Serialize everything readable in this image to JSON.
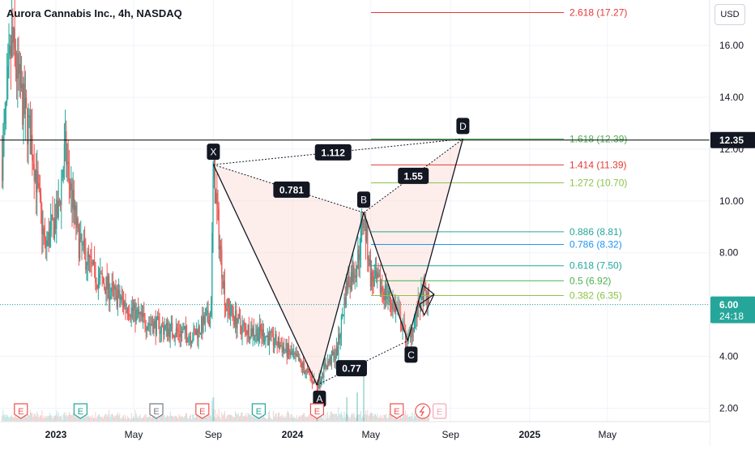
{
  "header": {
    "title": "Aurora Cannabis Inc., 4h, NASDAQ",
    "currency": "USD"
  },
  "price_tags": {
    "hline": "12.35",
    "last_price": "6.00",
    "countdown": "24:18"
  },
  "colors": {
    "up": "#26a69a",
    "down": "#ef5350",
    "pattern_fill": "#f8c9c0",
    "hline": "#000000",
    "last_price": "#26a69a"
  },
  "chart_data": {
    "type": "candlestick",
    "title": "Aurora Cannabis Inc., 4h, NASDAQ",
    "ylim": [
      1.7,
      17.8
    ],
    "y_ticks": [
      2,
      4,
      6,
      8,
      10,
      12,
      14,
      16
    ],
    "y_tick_labels": [
      "2.00",
      "4.00",
      "6.00",
      "8.00",
      "10.00",
      "12.00",
      "14.00",
      "16.00"
    ],
    "x_ticks": [
      "2023",
      "May",
      "Sep",
      "2024",
      "May",
      "Sep",
      "2025",
      "May"
    ],
    "x_tick_dates": [
      "2023-01-01",
      "2023-05-01",
      "2023-09-01",
      "2024-01-01",
      "2024-05-01",
      "2024-09-01",
      "2025-01-01",
      "2025-05-01"
    ],
    "price_path": [
      {
        "date": "2022-10-10",
        "close": 11.6
      },
      {
        "date": "2022-10-25",
        "close": 16.2
      },
      {
        "date": "2022-11-10",
        "close": 13.8
      },
      {
        "date": "2022-11-25",
        "close": 12.2
      },
      {
        "date": "2022-12-15",
        "close": 8.2
      },
      {
        "date": "2023-01-05",
        "close": 9.6
      },
      {
        "date": "2023-01-15",
        "close": 12.0
      },
      {
        "date": "2023-02-05",
        "close": 8.4
      },
      {
        "date": "2023-03-01",
        "close": 7.2
      },
      {
        "date": "2023-04-01",
        "close": 6.4
      },
      {
        "date": "2023-05-15",
        "close": 5.4
      },
      {
        "date": "2023-06-15",
        "close": 5.1
      },
      {
        "date": "2023-08-01",
        "close": 4.8
      },
      {
        "date": "2023-08-28",
        "close": 5.6
      },
      {
        "date": "2023-09-01",
        "close": 11.3
      },
      {
        "date": "2023-09-10",
        "close": 8.5
      },
      {
        "date": "2023-09-20",
        "close": 6.0
      },
      {
        "date": "2023-10-15",
        "close": 5.1
      },
      {
        "date": "2023-11-15",
        "close": 4.9
      },
      {
        "date": "2023-12-15",
        "close": 4.4
      },
      {
        "date": "2024-01-10",
        "close": 3.8
      },
      {
        "date": "2024-02-08",
        "close": 2.9
      },
      {
        "date": "2024-02-20",
        "close": 3.6
      },
      {
        "date": "2024-03-10",
        "close": 4.2
      },
      {
        "date": "2024-03-25",
        "close": 6.8
      },
      {
        "date": "2024-04-10",
        "close": 7.6
      },
      {
        "date": "2024-04-20",
        "close": 9.5
      },
      {
        "date": "2024-05-01",
        "close": 7.0
      },
      {
        "date": "2024-05-20",
        "close": 6.6
      },
      {
        "date": "2024-06-10",
        "close": 5.8
      },
      {
        "date": "2024-06-27",
        "close": 4.6
      },
      {
        "date": "2024-07-10",
        "close": 5.6
      },
      {
        "date": "2024-07-20",
        "close": 6.4
      },
      {
        "date": "2024-07-30",
        "close": 6.0
      }
    ],
    "harmonic_pattern": {
      "points": [
        {
          "label": "X",
          "date": "2023-09-01",
          "price": 11.4
        },
        {
          "label": "A",
          "date": "2024-02-08",
          "price": 2.9
        },
        {
          "label": "B",
          "date": "2024-04-20",
          "price": 9.55
        },
        {
          "label": "C",
          "date": "2024-06-27",
          "price": 4.6
        },
        {
          "label": "D",
          "date": "2024-09-20",
          "price": 12.39
        }
      ],
      "ratios": [
        {
          "value": "0.781",
          "from": "X",
          "to": "B"
        },
        {
          "value": "0.77",
          "from": "A",
          "to": "C"
        },
        {
          "value": "1.55",
          "from": "B",
          "to": "D"
        },
        {
          "value": "1.112",
          "from": "X",
          "to": "D"
        }
      ]
    },
    "fib_levels": [
      {
        "label": "2.618 (17.27)",
        "price": 17.27,
        "color": "#e53935"
      },
      {
        "label": "1.618 (12.39)",
        "price": 12.39,
        "color": "#4caf50"
      },
      {
        "label": "1.414 (11.39)",
        "price": 11.39,
        "color": "#e53935"
      },
      {
        "label": "1.272 (10.70)",
        "price": 10.7,
        "color": "#8bc34a"
      },
      {
        "label": "0.886 (8.81)",
        "price": 8.81,
        "color": "#26a69a"
      },
      {
        "label": "0.786 (8.32)",
        "price": 8.32,
        "color": "#2196f3"
      },
      {
        "label": "0.618 (7.50)",
        "price": 7.5,
        "color": "#26a69a"
      },
      {
        "label": "0.5 (6.92)",
        "price": 6.92,
        "color": "#4caf50"
      },
      {
        "label": "0.382 (6.35)",
        "price": 6.35,
        "color": "#8bc34a"
      }
    ],
    "horizontal_line": 12.35,
    "last_price": 6.0,
    "events": [
      {
        "date": "2022-11-08",
        "letter": "E",
        "color": "#ef5350",
        "shape": "circle"
      },
      {
        "date": "2023-02-08",
        "letter": "E",
        "color": "#26a69a",
        "shape": "circle"
      },
      {
        "date": "2023-06-05",
        "letter": "E",
        "color": "#787b86",
        "shape": "circle"
      },
      {
        "date": "2023-08-15",
        "letter": "E",
        "color": "#ef5350",
        "shape": "circle"
      },
      {
        "date": "2023-11-10",
        "letter": "E",
        "color": "#26a69a",
        "shape": "circle"
      },
      {
        "date": "2024-02-08",
        "letter": "E",
        "color": "#ef5350",
        "shape": "circle"
      },
      {
        "date": "2024-06-10",
        "letter": "E",
        "color": "#ef5350",
        "shape": "circle"
      },
      {
        "date": "2024-07-20",
        "letter": "",
        "color": "#ef5350",
        "shape": "split"
      },
      {
        "date": "2024-08-15",
        "letter": "E",
        "color": "#f4a6b6",
        "shape": "square"
      }
    ]
  }
}
